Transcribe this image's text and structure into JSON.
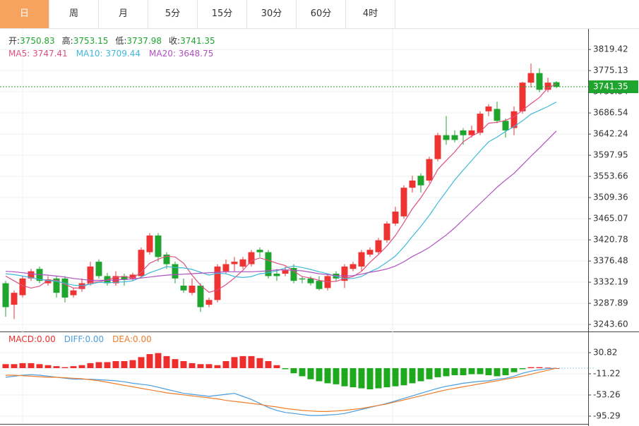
{
  "tabs": [
    "日",
    "周",
    "月",
    "5分",
    "15分",
    "30分",
    "60分",
    "4时"
  ],
  "active_tab": 0,
  "chart_data": [
    {
      "type": "candlestick",
      "ohlc_labels": [
        "开:",
        "高:",
        "低:",
        "收:"
      ],
      "up_color": "#ee3333",
      "down_color": "#1fa52e",
      "open": [
        3330,
        3285,
        3305,
        3340,
        3360,
        3330,
        3340,
        3340,
        3305,
        3318,
        3330,
        3375,
        3345,
        3330,
        3345,
        3340,
        3345,
        3395,
        3430,
        3390,
        3370,
        3325,
        3310,
        3325,
        3285,
        3295,
        3355,
        3370,
        3365,
        3370,
        3400,
        3395,
        3350,
        3350,
        3362,
        3340,
        3340,
        3335,
        3320,
        3350,
        3335,
        3360,
        3365,
        3390,
        3395,
        3420,
        3455,
        3470,
        3530,
        3555,
        3545,
        3590,
        3640,
        3640,
        3650,
        3640,
        3645,
        3690,
        3695,
        3670,
        3655,
        3690,
        3750,
        3770,
        3735,
        3750.83
      ],
      "high": [
        3335,
        3315,
        3345,
        3360,
        3365,
        3345,
        3345,
        3345,
        3320,
        3340,
        3375,
        3380,
        3352,
        3355,
        3350,
        3352,
        3405,
        3435,
        3435,
        3395,
        3375,
        3340,
        3340,
        3330,
        3300,
        3370,
        3380,
        3385,
        3385,
        3400,
        3405,
        3400,
        3360,
        3365,
        3370,
        3345,
        3345,
        3345,
        3350,
        3355,
        3370,
        3375,
        3400,
        3405,
        3425,
        3460,
        3490,
        3535,
        3555,
        3560,
        3595,
        3645,
        3680,
        3650,
        3655,
        3660,
        3690,
        3705,
        3710,
        3675,
        3700,
        3752,
        3790,
        3780,
        3760,
        3753.15
      ],
      "low": [
        3260,
        3255,
        3300,
        3335,
        3330,
        3325,
        3300,
        3290,
        3300,
        3312,
        3325,
        3340,
        3325,
        3325,
        3325,
        3335,
        3340,
        3390,
        3375,
        3360,
        3330,
        3310,
        3305,
        3270,
        3280,
        3290,
        3350,
        3355,
        3360,
        3365,
        3385,
        3340,
        3335,
        3345,
        3330,
        3330,
        3325,
        3315,
        3315,
        3335,
        3320,
        3355,
        3355,
        3385,
        3390,
        3415,
        3450,
        3465,
        3520,
        3520,
        3540,
        3585,
        3620,
        3625,
        3620,
        3635,
        3640,
        3680,
        3665,
        3635,
        3640,
        3685,
        3740,
        3730,
        3730,
        3737.98
      ],
      "close": [
        3280,
        3310,
        3340,
        3355,
        3335,
        3338,
        3310,
        3300,
        3315,
        3330,
        3365,
        3345,
        3330,
        3345,
        3337,
        3348,
        3400,
        3430,
        3385,
        3370,
        3340,
        3315,
        3325,
        3280,
        3295,
        3365,
        3370,
        3375,
        3380,
        3395,
        3395,
        3345,
        3345,
        3357,
        3335,
        3338,
        3330,
        3318,
        3345,
        3340,
        3365,
        3370,
        3395,
        3400,
        3420,
        3455,
        3480,
        3530,
        3545,
        3535,
        3590,
        3640,
        3630,
        3630,
        3640,
        3650,
        3685,
        3700,
        3670,
        3650,
        3690,
        3750,
        3770,
        3735,
        3750,
        3741.35
      ],
      "series": [
        {
          "name": "MA5",
          "color": "#e0507f",
          "values": [
            3345,
            3335,
            3325,
            3320,
            3324,
            3336,
            3336,
            3328,
            3320,
            3320,
            3332,
            3333,
            3337,
            3343,
            3344,
            3341,
            3353,
            3372,
            3380,
            3387,
            3385,
            3372,
            3347,
            3326,
            3311,
            3316,
            3327,
            3341,
            3357,
            3377,
            3383,
            3378,
            3372,
            3367,
            3355,
            3344,
            3341,
            3336,
            3333,
            3334,
            3340,
            3344,
            3355,
            3374,
            3390,
            3408,
            3430,
            3457,
            3486,
            3509,
            3536,
            3568,
            3587,
            3605,
            3626,
            3638,
            3647,
            3665,
            3667,
            3671,
            3679,
            3692,
            3706,
            3719,
            3739,
            3747.41
          ]
        },
        {
          "name": "MA10",
          "color": "#3fb8d9",
          "values": [
            3350,
            3348,
            3345,
            3342,
            3338,
            3336,
            3334,
            3330,
            3326,
            3325,
            3328,
            3332,
            3331,
            3332,
            3333,
            3335,
            3343,
            3352,
            3358,
            3365,
            3363,
            3362,
            3359,
            3353,
            3347,
            3351,
            3350,
            3344,
            3342,
            3344,
            3350,
            3352,
            3356,
            3362,
            3366,
            3363,
            3359,
            3354,
            3350,
            3344,
            3340,
            3340,
            3344,
            3354,
            3362,
            3374,
            3387,
            3406,
            3428,
            3449,
            3472,
            3498,
            3522,
            3546,
            3567,
            3587,
            3607,
            3626,
            3636,
            3648,
            3658,
            3670,
            3684,
            3692,
            3700,
            3709.44
          ]
        },
        {
          "name": "MA20",
          "color": "#b050c0",
          "values": [
            3355,
            3354,
            3352,
            3350,
            3348,
            3347,
            3345,
            3343,
            3340,
            3338,
            3336,
            3336,
            3336,
            3337,
            3338,
            3339,
            3341,
            3343,
            3345,
            3347,
            3348,
            3349,
            3350,
            3351,
            3352,
            3353,
            3354,
            3354,
            3354,
            3354,
            3355,
            3356,
            3358,
            3358,
            3357,
            3356,
            3353,
            3350,
            3348,
            3346,
            3345,
            3346,
            3349,
            3353,
            3356,
            3360,
            3366,
            3375,
            3386,
            3395,
            3405,
            3418,
            3431,
            3446,
            3463,
            3480,
            3497,
            3514,
            3531,
            3546,
            3560,
            3578,
            3596,
            3613,
            3631,
            3648.75
          ]
        }
      ],
      "current_price": 3741.35,
      "ylim": [
        3229,
        3861
      ],
      "yticks": [
        3819.42,
        3775.13,
        3730.84,
        3686.54,
        3642.24,
        3597.95,
        3553.66,
        3509.36,
        3465.07,
        3420.78,
        3376.48,
        3332.19,
        3287.89,
        {
          "value": 3243.6,
          "label": "3243.60"
        }
      ],
      "grid": true
    },
    {
      "type": "macd",
      "hist_up_color": "#ee2d2d",
      "hist_down_color": "#1ea81e",
      "hist_name": "MACD",
      "hist_label": "0.00",
      "hist": [
        8,
        8,
        10,
        10,
        8,
        6,
        4,
        2,
        4,
        6,
        10,
        12,
        12,
        14,
        14,
        16,
        22,
        28,
        30,
        24,
        18,
        14,
        10,
        8,
        8,
        6,
        14,
        22,
        24,
        24,
        20,
        14,
        6,
        -2,
        -10,
        -16,
        -22,
        -26,
        -30,
        -32,
        -36,
        -38,
        -40,
        -42,
        -40,
        -38,
        -36,
        -34,
        -30,
        -26,
        -22,
        -18,
        -16,
        -14,
        -14,
        -12,
        -12,
        -14,
        -16,
        -14,
        -8,
        -2,
        2,
        2,
        1,
        0
      ],
      "series": [
        {
          "name": "DIFF",
          "color": "#4a9de0",
          "value_label": "0.00",
          "values": [
            -18,
            -16,
            -14,
            -13,
            -14,
            -16,
            -18,
            -20,
            -22,
            -22,
            -22,
            -23,
            -24,
            -25,
            -27,
            -30,
            -32,
            -34,
            -38,
            -42,
            -46,
            -50,
            -52,
            -54,
            -56,
            -54,
            -52,
            -50,
            -56,
            -62,
            -70,
            -78,
            -84,
            -88,
            -90,
            -92,
            -94,
            -94,
            -93,
            -92,
            -90,
            -86,
            -82,
            -78,
            -74,
            -70,
            -65,
            -60,
            -55,
            -50,
            -45,
            -40,
            -36,
            -33,
            -30,
            -28,
            -26,
            -25,
            -22,
            -20,
            -16,
            -10,
            -6,
            -3,
            -1,
            0
          ]
        },
        {
          "name": "DEA",
          "color": "#f07d2b",
          "value_label": "0.00",
          "values": [
            -14,
            -14,
            -15,
            -16,
            -17,
            -18,
            -18,
            -19,
            -20,
            -21,
            -23,
            -25,
            -28,
            -31,
            -34,
            -37,
            -40,
            -43,
            -46,
            -49,
            -51,
            -53,
            -55,
            -57,
            -59,
            -61,
            -64,
            -66,
            -68,
            -70,
            -72,
            -75,
            -77,
            -80,
            -82,
            -84,
            -85,
            -86,
            -86,
            -85,
            -84,
            -82,
            -80,
            -77,
            -74,
            -71,
            -67,
            -63,
            -59,
            -55,
            -51,
            -47,
            -43,
            -40,
            -37,
            -34,
            -31,
            -28,
            -25,
            -22,
            -19,
            -16,
            -12,
            -8,
            -4,
            0
          ]
        }
      ],
      "ylim": [
        -109.3,
        70.1
      ],
      "yticks": [
        30.82,
        -11.22,
        -53.26,
        -95.29
      ]
    }
  ]
}
